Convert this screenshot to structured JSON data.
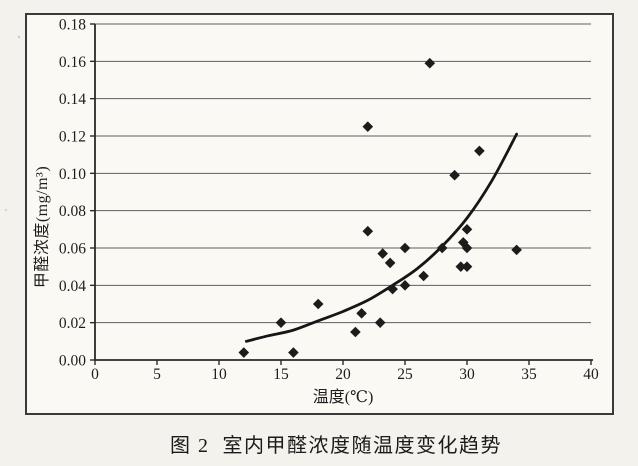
{
  "figure": {
    "caption": "图 2  室内甲醛浓度随温度变化趋势"
  },
  "chart_data": {
    "type": "scatter",
    "title": "",
    "xlabel": "温度(℃)",
    "ylabel": "甲醛浓度(mg/m³)",
    "xlim": [
      0,
      40
    ],
    "ylim": [
      0,
      0.18
    ],
    "x_ticks": [
      0,
      5,
      10,
      15,
      20,
      25,
      30,
      35,
      40
    ],
    "y_ticks": [
      "0.00",
      "0.02",
      "0.04",
      "0.06",
      "0.08",
      "0.10",
      "0.12",
      "0.14",
      "0.16",
      "0.18"
    ],
    "grid": "horizontal",
    "legend": "none",
    "marker": "diamond",
    "points": [
      [
        12,
        0.004
      ],
      [
        15,
        0.02
      ],
      [
        16,
        0.004
      ],
      [
        18,
        0.03
      ],
      [
        21,
        0.015
      ],
      [
        21.5,
        0.025
      ],
      [
        23,
        0.02
      ],
      [
        22,
        0.069
      ],
      [
        23.2,
        0.057
      ],
      [
        23.8,
        0.052
      ],
      [
        24,
        0.038
      ],
      [
        25,
        0.04
      ],
      [
        25,
        0.06
      ],
      [
        26.5,
        0.045
      ],
      [
        28,
        0.06
      ],
      [
        29.5,
        0.05
      ],
      [
        30,
        0.05
      ],
      [
        29.7,
        0.063
      ],
      [
        30,
        0.06
      ],
      [
        30,
        0.07
      ],
      [
        22,
        0.125
      ],
      [
        27,
        0.159
      ],
      [
        29,
        0.099
      ],
      [
        31,
        0.112
      ],
      [
        34,
        0.059
      ]
    ],
    "trend_curve": [
      [
        12.2,
        0.01
      ],
      [
        14,
        0.013
      ],
      [
        16,
        0.016
      ],
      [
        18,
        0.021
      ],
      [
        20,
        0.026
      ],
      [
        22,
        0.032
      ],
      [
        24,
        0.04
      ],
      [
        26,
        0.049
      ],
      [
        28,
        0.061
      ],
      [
        30,
        0.076
      ],
      [
        32,
        0.096
      ],
      [
        34,
        0.121
      ]
    ],
    "colors": {
      "marker": "#1c1c1c",
      "curve": "#161616",
      "grid": "#5e5e5e",
      "axis": "#2a2a2a",
      "text": "#1d1d1d",
      "frame_border": "#3a3a3a",
      "paper": "#f3f2ec",
      "plot_bg": "#faf9f4"
    }
  }
}
